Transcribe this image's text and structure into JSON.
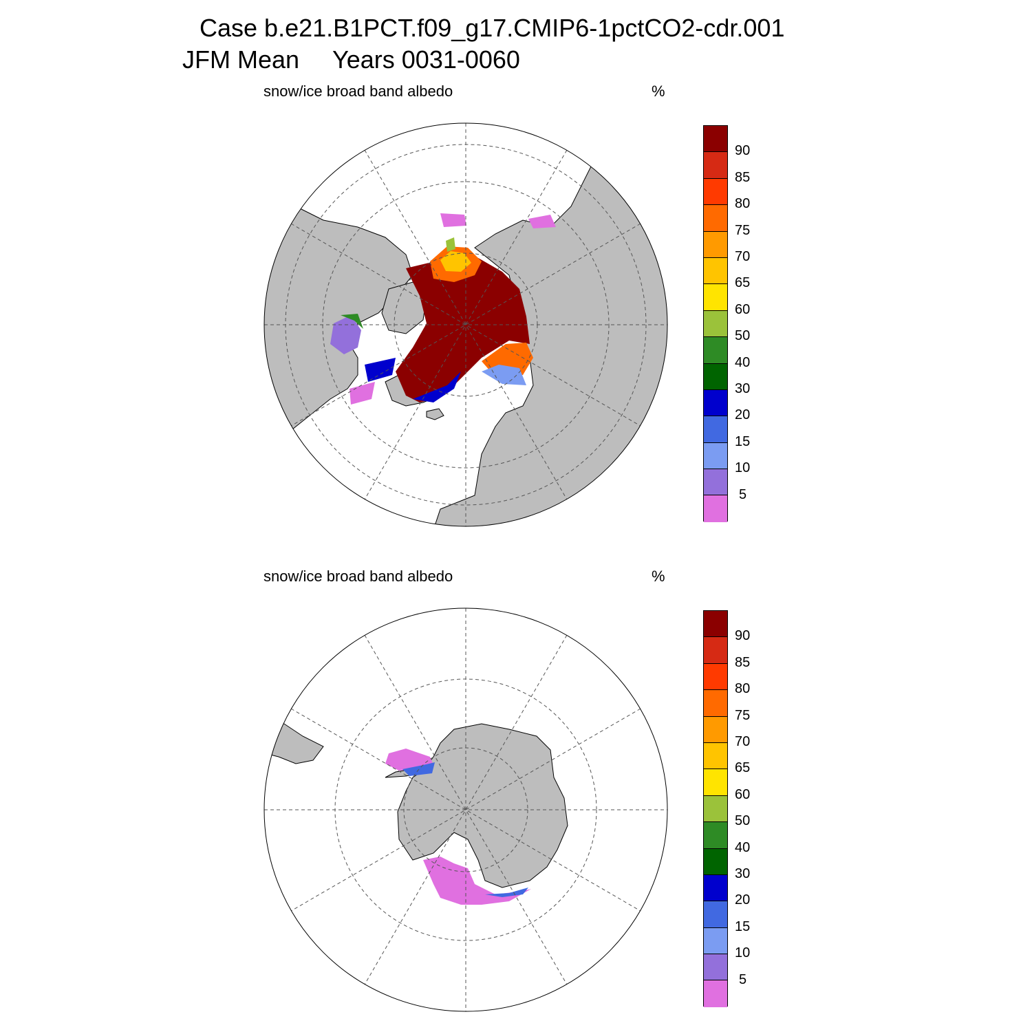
{
  "title": {
    "case": "Case b.e21.B1PCT.f09_g17.CMIP6-1pctCO2-cdr.001",
    "season": "JFM Mean",
    "years": "Years 0031-0060"
  },
  "panels": [
    {
      "id": "north",
      "variable": "snow/ice broad band albedo",
      "units": "%"
    },
    {
      "id": "south",
      "variable": "snow/ice broad band albedo",
      "units": "%"
    }
  ],
  "colorbar": {
    "labels": [
      "90",
      "85",
      "80",
      "75",
      "70",
      "65",
      "60",
      "50",
      "40",
      "30",
      "20",
      "15",
      "10",
      "5"
    ],
    "colors": [
      "#8b0000",
      "#d62a14",
      "#ff3a00",
      "#ff6a00",
      "#ff9a00",
      "#ffc400",
      "#ffe400",
      "#9bc23a",
      "#2e8b25",
      "#006400",
      "#0000cd",
      "#4169e1",
      "#7b9cf2",
      "#9370db",
      "#e070e0"
    ]
  },
  "map_style": {
    "land": "#bdbdbd",
    "ocean": "#ffffff",
    "grid": "#555555"
  }
}
